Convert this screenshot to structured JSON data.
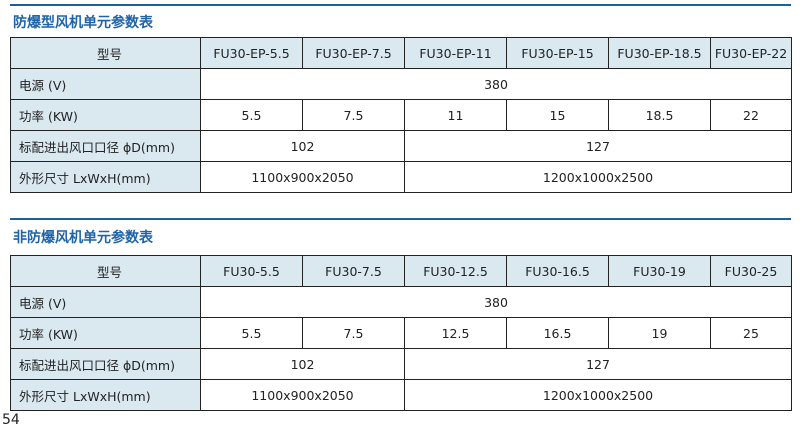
{
  "sections": [
    {
      "title": "防爆型风机单元参数表",
      "header_label": "型号",
      "models": [
        "FU30-EP-5.5",
        "FU30-EP-7.5",
        "FU30-EP-11",
        "FU30-EP-15",
        "FU30-EP-18.5",
        "FU30-EP-22"
      ],
      "voltage_label": "电源 (V)",
      "voltage": "380",
      "power_label": "功率 (KW)",
      "power": [
        "5.5",
        "7.5",
        "11",
        "15",
        "18.5",
        "22"
      ],
      "duct_label": "标配进出风口口径 ϕD(mm)",
      "duct": [
        "102",
        "127"
      ],
      "size_label": "外形尺寸 LxWxH(mm)",
      "size": [
        "1100x900x2050",
        "1200x1000x2500"
      ]
    },
    {
      "title": "非防爆风机单元参数表",
      "header_label": "型号",
      "models": [
        "FU30-5.5",
        "FU30-7.5",
        "FU30-12.5",
        "FU30-16.5",
        "FU30-19",
        "FU30-25"
      ],
      "voltage_label": "电源 (V)",
      "voltage": "380",
      "power_label": "功率 (KW)",
      "power": [
        "5.5",
        "7.5",
        "12.5",
        "16.5",
        "19",
        "25"
      ],
      "duct_label": "标配进出风口口径 ϕD(mm)",
      "duct": [
        "102",
        "127"
      ],
      "size_label": "外形尺寸 LxWxH(mm)",
      "size": [
        "1100x900x2050",
        "1200x1000x2500"
      ]
    }
  ],
  "page_number": "54",
  "colors": {
    "title": "#1f63a8",
    "header_bg": "#d9e9ef",
    "rule": "#1d5f9c"
  }
}
